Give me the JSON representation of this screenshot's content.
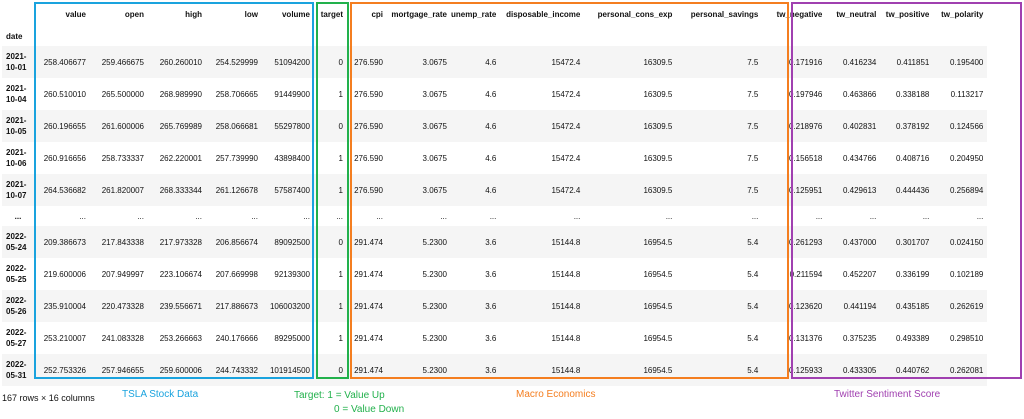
{
  "columns": [
    "value",
    "open",
    "high",
    "low",
    "volume",
    "target",
    "cpi",
    "mortgage_rate",
    "unemp_rate",
    "disposable_income",
    "personal_cons_exp",
    "personal_savings",
    "tw_negative",
    "tw_neutral",
    "tw_positive",
    "tw_polarity"
  ],
  "index_name": "date",
  "rows": [
    {
      "date_y": "2021-",
      "date_md": "10-01",
      "cells": [
        "258.406677",
        "259.466675",
        "260.260010",
        "254.529999",
        "51094200",
        "0",
        "276.590",
        "3.0675",
        "4.6",
        "15472.4",
        "16309.5",
        "7.5",
        "0.171916",
        "0.416234",
        "0.411851",
        "0.195400"
      ]
    },
    {
      "date_y": "2021-",
      "date_md": "10-04",
      "cells": [
        "260.510010",
        "265.500000",
        "268.989990",
        "258.706665",
        "91449900",
        "1",
        "276.590",
        "3.0675",
        "4.6",
        "15472.4",
        "16309.5",
        "7.5",
        "0.197946",
        "0.463866",
        "0.338188",
        "0.113217"
      ]
    },
    {
      "date_y": "2021-",
      "date_md": "10-05",
      "cells": [
        "260.196655",
        "261.600006",
        "265.769989",
        "258.066681",
        "55297800",
        "0",
        "276.590",
        "3.0675",
        "4.6",
        "15472.4",
        "16309.5",
        "7.5",
        "0.218976",
        "0.402831",
        "0.378192",
        "0.124566"
      ]
    },
    {
      "date_y": "2021-",
      "date_md": "10-06",
      "cells": [
        "260.916656",
        "258.733337",
        "262.220001",
        "257.739990",
        "43898400",
        "1",
        "276.590",
        "3.0675",
        "4.6",
        "15472.4",
        "16309.5",
        "7.5",
        "0.156518",
        "0.434766",
        "0.408716",
        "0.204950"
      ]
    },
    {
      "date_y": "2021-",
      "date_md": "10-07",
      "cells": [
        "264.536682",
        "261.820007",
        "268.333344",
        "261.126678",
        "57587400",
        "1",
        "276.590",
        "3.0675",
        "4.6",
        "15472.4",
        "16309.5",
        "7.5",
        "0.125951",
        "0.429613",
        "0.444436",
        "0.256894"
      ]
    },
    {
      "date_y": "...",
      "date_md": "",
      "cells": [
        "...",
        "...",
        "...",
        "...",
        "...",
        "...",
        "...",
        "...",
        "...",
        "...",
        "...",
        "...",
        "...",
        "...",
        "...",
        "..."
      ]
    },
    {
      "date_y": "2022-",
      "date_md": "05-24",
      "cells": [
        "209.386673",
        "217.843338",
        "217.973328",
        "206.856674",
        "89092500",
        "0",
        "291.474",
        "5.2300",
        "3.6",
        "15144.8",
        "16954.5",
        "5.4",
        "0.261293",
        "0.437000",
        "0.301707",
        "0.024150"
      ]
    },
    {
      "date_y": "2022-",
      "date_md": "05-25",
      "cells": [
        "219.600006",
        "207.949997",
        "223.106674",
        "207.669998",
        "92139300",
        "1",
        "291.474",
        "5.2300",
        "3.6",
        "15144.8",
        "16954.5",
        "5.4",
        "0.211594",
        "0.452207",
        "0.336199",
        "0.102189"
      ]
    },
    {
      "date_y": "2022-",
      "date_md": "05-26",
      "cells": [
        "235.910004",
        "220.473328",
        "239.556671",
        "217.886673",
        "106003200",
        "1",
        "291.474",
        "5.2300",
        "3.6",
        "15144.8",
        "16954.5",
        "5.4",
        "0.123620",
        "0.441194",
        "0.435185",
        "0.262619"
      ]
    },
    {
      "date_y": "2022-",
      "date_md": "05-27",
      "cells": [
        "253.210007",
        "241.083328",
        "253.266663",
        "240.176666",
        "89295000",
        "1",
        "291.474",
        "5.2300",
        "3.6",
        "15144.8",
        "16954.5",
        "5.4",
        "0.131376",
        "0.375235",
        "0.493389",
        "0.298510"
      ]
    },
    {
      "date_y": "2022-",
      "date_md": "05-31",
      "cells": [
        "252.753326",
        "257.946655",
        "259.600006",
        "244.743332",
        "101914500",
        "0",
        "291.474",
        "5.2300",
        "3.6",
        "15144.8",
        "16954.5",
        "5.4",
        "0.125933",
        "0.433305",
        "0.440762",
        "0.262081"
      ]
    }
  ],
  "footer": "167 rows × 16 columns",
  "captions": {
    "stock": "TSLA Stock Data",
    "target_line1": "Target: 1 = Value Up",
    "target_line2": "0 = Value Down",
    "macro": "Macro Economics",
    "twitter": "Twitter Sentiment Score"
  },
  "colors": {
    "stock": "#1aa3de",
    "target": "#22b14c",
    "macro": "#f47e20",
    "twitter": "#a040b0"
  }
}
